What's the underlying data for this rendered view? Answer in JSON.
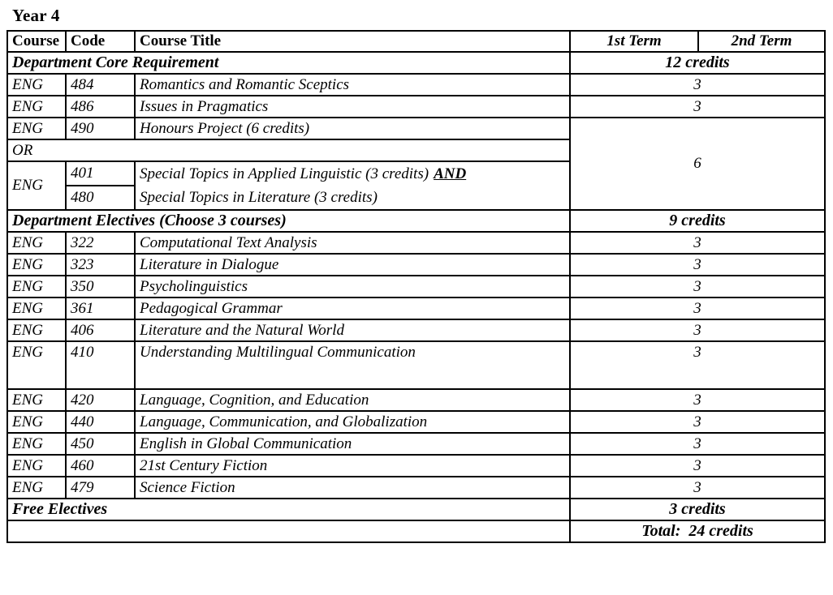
{
  "page": {
    "title": "Year 4"
  },
  "colors": {
    "text": "#000000",
    "border": "#000000",
    "background": "#ffffff"
  },
  "table": {
    "header": {
      "course": "Course",
      "code": "Code",
      "title": "Course Title",
      "term1": "1st Term",
      "term2": "2nd Term"
    },
    "core": {
      "section_label": "Department Core Requirement",
      "section_credits": "12 credits",
      "rows": [
        {
          "course": "ENG",
          "code": "484",
          "title": "Romantics and Romantic Sceptics",
          "credits": "3"
        },
        {
          "course": "ENG",
          "code": "486",
          "title": "Issues in Pragmatics",
          "credits": "3"
        }
      ],
      "honours": {
        "course": "ENG",
        "code": "490",
        "title": "Honours Project (6 credits)",
        "or_label": "OR",
        "alt_course": "ENG",
        "alt_code1": "401",
        "alt_title1": "Special Topics in Applied Linguistic (3 credits)",
        "and_label": "AND",
        "alt_code2": "480",
        "alt_title2": "Special Topics in Literature (3 credits)",
        "credits": "6"
      }
    },
    "electives": {
      "section_label": "Department Electives (Choose 3 courses)",
      "section_credits": "9 credits",
      "rows": [
        {
          "course": "ENG",
          "code": "322",
          "title": "Computational Text Analysis",
          "credits": "3"
        },
        {
          "course": "ENG",
          "code": "323",
          "title": "Literature in Dialogue",
          "credits": "3"
        },
        {
          "course": "ENG",
          "code": "350",
          "title": "Psycholinguistics",
          "credits": "3"
        },
        {
          "course": "ENG",
          "code": "361",
          "title": "Pedagogical Grammar",
          "credits": "3"
        },
        {
          "course": "ENG",
          "code": "406",
          "title": "Literature and the Natural World",
          "credits": "3"
        },
        {
          "course": "ENG",
          "code": "410",
          "title": "Understanding Multilingual Communication",
          "credits": "3"
        },
        {
          "course": "ENG",
          "code": "420",
          "title": "Language, Cognition, and Education",
          "credits": "3"
        },
        {
          "course": "ENG",
          "code": "440",
          "title": "Language, Communication, and Globalization",
          "credits": "3"
        },
        {
          "course": "ENG",
          "code": "450",
          "title": "English in Global Communication",
          "credits": "3"
        },
        {
          "course": "ENG",
          "code": "460",
          "title": "21st Century Fiction",
          "credits": "3"
        },
        {
          "course": "ENG",
          "code": "479",
          "title": "Science Fiction",
          "credits": "3"
        }
      ]
    },
    "free_electives": {
      "label": "Free Electives",
      "credits": "3 credits"
    },
    "total": {
      "label": "Total:  24 credits"
    }
  }
}
